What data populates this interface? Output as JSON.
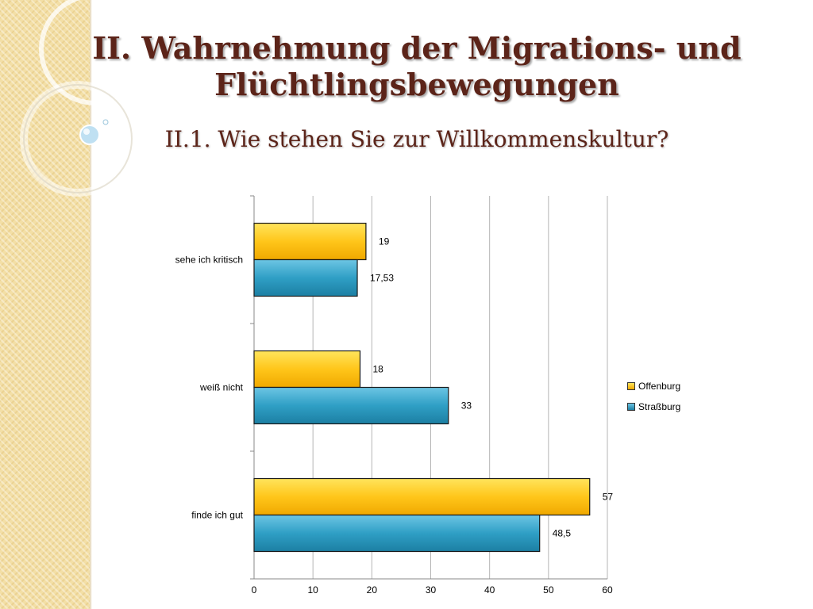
{
  "slide": {
    "title": "II. Wahrnehmung der Migrations- und Flüchtlingsbewegungen",
    "subtitle": "II.1. Wie stehen Sie zur Willkommenskultur?"
  },
  "colors": {
    "title": "#5c2419",
    "offenburg": "#ffc61a",
    "strassburg": "#2f9fc5",
    "sidebar": "#f3dfa6"
  },
  "chart_data": {
    "type": "bar",
    "orientation": "horizontal",
    "categories": [
      "sehe ich kritisch",
      "weiß nicht",
      "finde ich gut"
    ],
    "series": [
      {
        "name": "Offenburg",
        "values": [
          19,
          18,
          57
        ],
        "labels": [
          "19",
          "18",
          "57"
        ]
      },
      {
        "name": "Straßburg",
        "values": [
          17.53,
          33,
          48.5
        ],
        "labels": [
          "17,53",
          "33",
          "48,5"
        ]
      }
    ],
    "xlim": [
      0,
      60
    ],
    "xticks": [
      0,
      10,
      20,
      30,
      40,
      50,
      60
    ],
    "grid": true,
    "legend_position": "right"
  }
}
